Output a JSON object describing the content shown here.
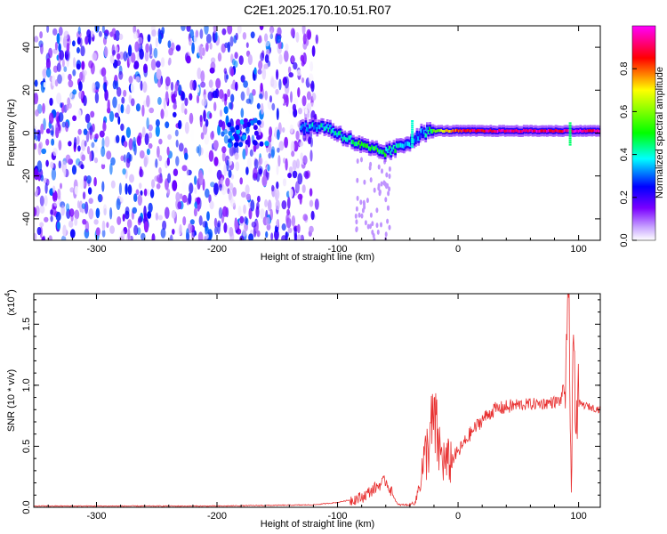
{
  "title": "C2E1.2025.170.10.51.R07",
  "chart_data": [
    {
      "type": "heatmap",
      "xlabel": "Height of straight line (km)",
      "ylabel": "Frequency (Hz)",
      "xlim": [
        -352,
        118
      ],
      "ylim": [
        -50,
        50
      ],
      "xticks": [
        -300,
        -200,
        -100,
        0,
        100
      ],
      "yticks": [
        -40,
        -20,
        0,
        20,
        40
      ],
      "colorbar": {
        "label": "Normalized spectral amplitude",
        "range": [
          0,
          1
        ],
        "ticks": [
          "0.0",
          "0.2",
          "0.4",
          "0.6",
          "0.8"
        ],
        "colors": [
          "#ffffff",
          "#7a00ff",
          "#0000ff",
          "#00ffff",
          "#00ff00",
          "#ffff00",
          "#ff0000",
          "#ff00ff"
        ]
      },
      "ridge": {
        "x": [
          -130,
          -120,
          -110,
          -100,
          -90,
          -80,
          -70,
          -60,
          -50,
          -40,
          -30,
          -20,
          0,
          20,
          50,
          80,
          100,
          118
        ],
        "y": [
          2,
          3,
          3,
          0,
          -3,
          -6,
          -8,
          -9,
          -7,
          -4,
          0,
          1,
          1,
          1,
          1,
          1,
          1,
          1
        ],
        "amplitude": [
          0.3,
          0.35,
          0.4,
          0.4,
          0.45,
          0.5,
          0.5,
          0.45,
          0.4,
          0.35,
          0.3,
          0.55,
          0.85,
          0.9,
          0.95,
          0.9,
          0.95,
          0.9
        ]
      }
    },
    {
      "type": "line",
      "xlabel": "Height of straight line (km)",
      "ylabel": "SNR (10 * v/v)",
      "yscale_label": "(x10",
      "yscale_exp": "4",
      "xlim": [
        -352,
        118
      ],
      "ylim": [
        0,
        1.75
      ],
      "xticks": [
        -300,
        -200,
        -100,
        0,
        100
      ],
      "yticks": [
        "0.0",
        "0.5",
        "1.0",
        "1.5"
      ],
      "series": [
        {
          "color": "#e83030",
          "x": [
            -352,
            -200,
            -120,
            -100,
            -80,
            -70,
            -60,
            -55,
            -50,
            -40,
            -35,
            -30,
            -25,
            -20,
            -15,
            -10,
            -5,
            0,
            10,
            20,
            30,
            50,
            70,
            85,
            90,
            92,
            94,
            96,
            98,
            100,
            110,
            118
          ],
          "y": [
            0.01,
            0.01,
            0.02,
            0.04,
            0.08,
            0.15,
            0.22,
            0.12,
            0.02,
            0.02,
            0.05,
            0.3,
            0.5,
            0.7,
            0.45,
            0.35,
            0.4,
            0.45,
            0.6,
            0.72,
            0.8,
            0.84,
            0.85,
            0.87,
            1.1,
            1.75,
            0.1,
            1.45,
            0.7,
            0.85,
            0.82,
            0.8
          ]
        }
      ]
    }
  ]
}
